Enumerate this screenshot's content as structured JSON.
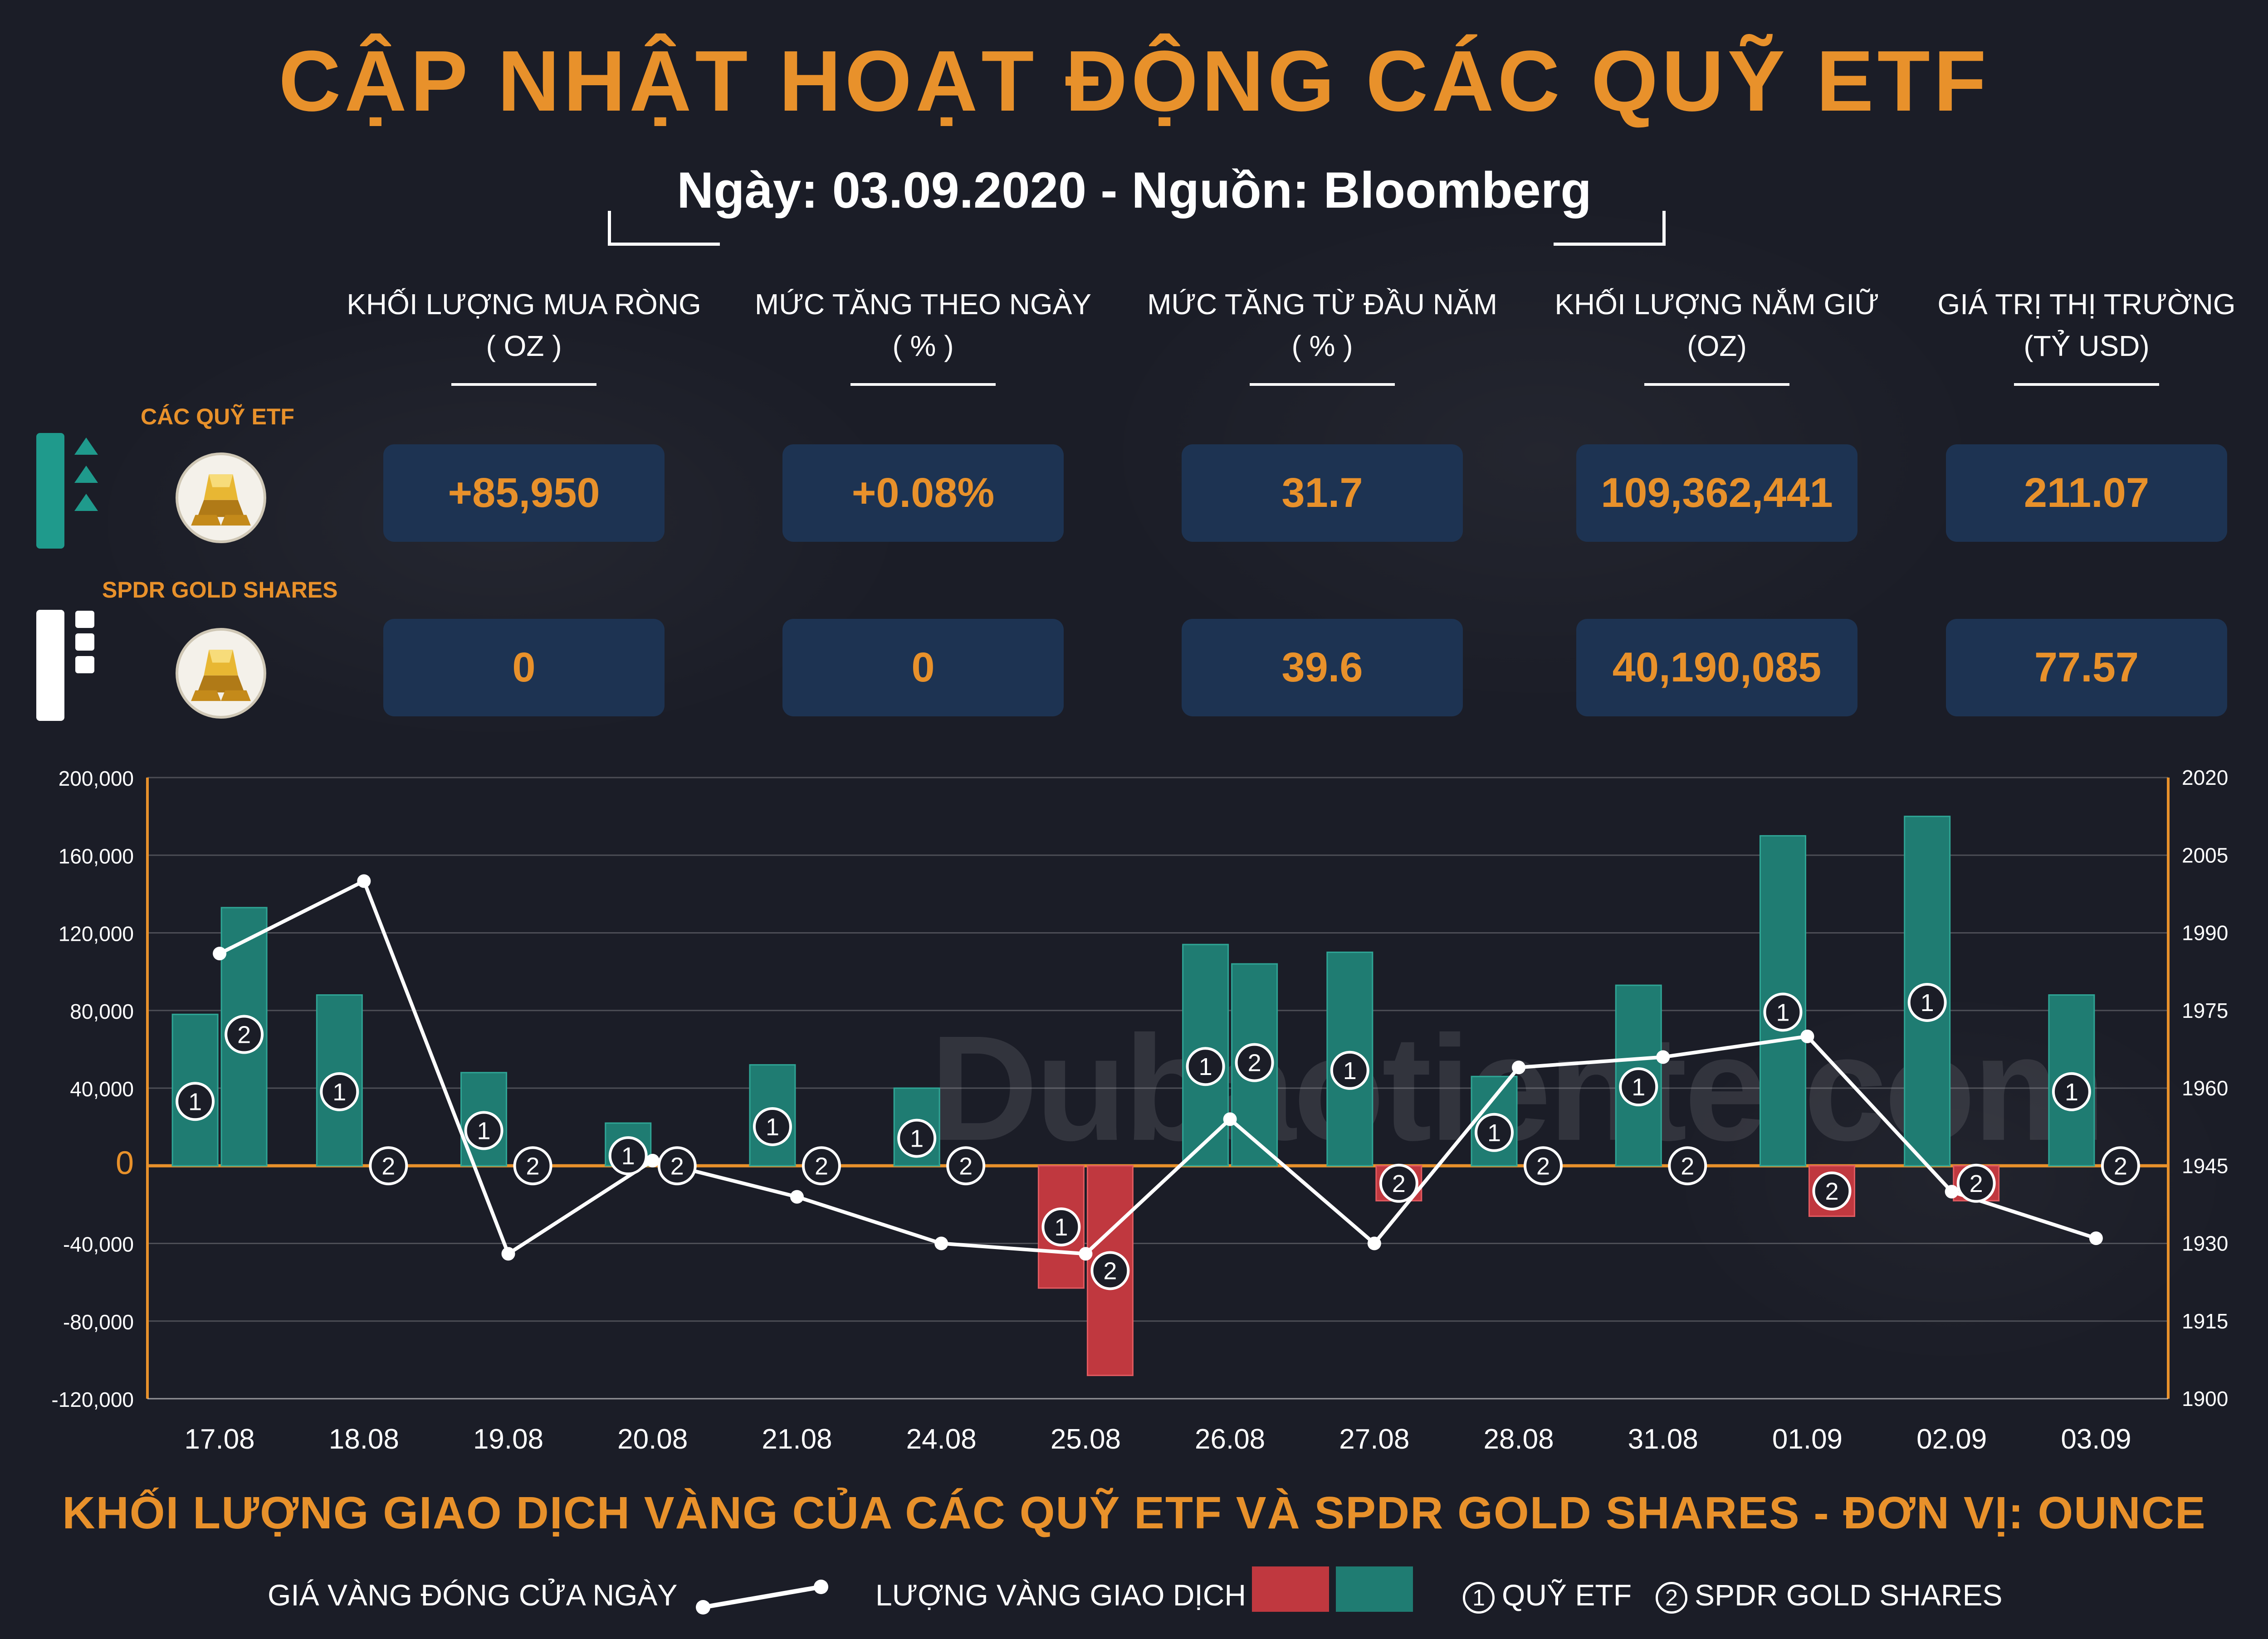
{
  "title": "CẬP NHẬT HOẠT ĐỘNG CÁC QUỸ ETF",
  "subtitle": "Ngày: 03.09.2020 - Nguồn: Bloomberg",
  "columns": [
    {
      "line1": "KHỐI LƯỢNG MUA RÒNG",
      "line2": "( OZ )"
    },
    {
      "line1": "MỨC TĂNG THEO NGÀY",
      "line2": "( % )"
    },
    {
      "line1": "MỨC TĂNG TỪ ĐẦU NĂM",
      "line2": "( % )"
    },
    {
      "line1": "KHỐI LƯỢNG NẮM GIỮ",
      "line2": "(OZ)"
    },
    {
      "line1": "GIÁ TRỊ THỊ TRƯỜNG",
      "line2": "(TỶ USD)"
    }
  ],
  "rows": [
    {
      "label": "CÁC QUỸ ETF",
      "values": [
        "+85,950",
        "+0.08%",
        "31.7",
        "109,362,441",
        "211.07"
      ]
    },
    {
      "label": "SPDR GOLD SHARES",
      "values": [
        "0",
        "0",
        "39.6",
        "40,190,085",
        "77.57"
      ]
    }
  ],
  "watermark": "Dubaotiente.com",
  "chart_data": {
    "type": "bar",
    "title": "KHỐI LƯỢNG GIAO DỊCH VÀNG CỦA CÁC QUỸ ETF VÀ SPDR GOLD SHARES - ĐƠN VỊ: OUNCE",
    "categories": [
      "17.08",
      "18.08",
      "19.08",
      "20.08",
      "21.08",
      "24.08",
      "25.08",
      "26.08",
      "27.08",
      "28.08",
      "31.08",
      "01.09",
      "02.09",
      "03.09"
    ],
    "series": [
      {
        "name": "QUỸ ETF",
        "marker": "1",
        "values": [
          78000,
          88000,
          48000,
          22000,
          52000,
          40000,
          -63000,
          114000,
          110000,
          46000,
          93000,
          170000,
          180000,
          88000
        ]
      },
      {
        "name": "SPDR GOLD SHARES",
        "marker": "2",
        "values": [
          133000,
          0,
          0,
          0,
          0,
          0,
          -108000,
          104000,
          -18000,
          0,
          0,
          -26000,
          -18000,
          0
        ]
      },
      {
        "name": "GIÁ VÀNG ĐÓNG CỬA NGÀY",
        "type": "line",
        "axis": "right",
        "values": [
          1986,
          2000,
          1928,
          1946,
          1939,
          1930,
          1928,
          1954,
          1930,
          1964,
          1966,
          1970,
          1940,
          1931
        ]
      }
    ],
    "y_left": {
      "min": -120000,
      "max": 200000,
      "ticks": [
        "-120,000",
        "-80,000",
        "-40,000",
        "0",
        "40,000",
        "80,000",
        "120,000",
        "160,000",
        "200,000"
      ],
      "tick_values": [
        -120000,
        -80000,
        -40000,
        0,
        40000,
        80000,
        120000,
        160000,
        200000
      ]
    },
    "y_right": {
      "min": 1900,
      "max": 2020,
      "ticks": [
        "1900",
        "1915",
        "1930",
        "1945",
        "1960",
        "1975",
        "1990",
        "2005",
        "2020"
      ]
    },
    "grid": true,
    "colors": {
      "positive": "#1f7c72",
      "negative": "#c0383f",
      "line": "#ffffff",
      "axis": "#e8912b"
    },
    "legend": {
      "line_label": "GIÁ VÀNG ĐÓNG CỬA NGÀY",
      "bar_label": "LƯỢNG VÀNG GIAO DỊCH",
      "s1_label": "QUỸ ETF",
      "s2_label": "SPDR GOLD SHARES",
      "placement": "bottom"
    }
  }
}
